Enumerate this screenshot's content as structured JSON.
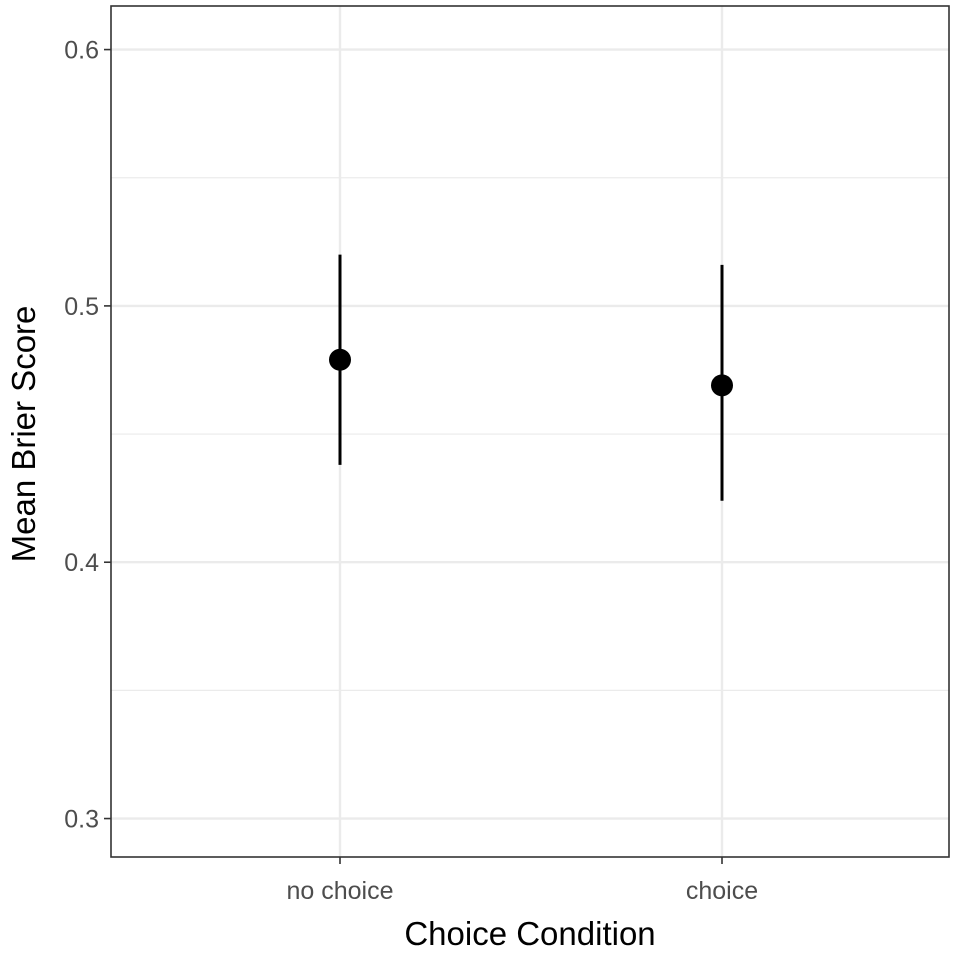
{
  "chart_data": {
    "type": "scatter",
    "title": "",
    "xlabel": "Choice Condition",
    "ylabel": "Mean Brier Score",
    "categories": [
      "no choice",
      "choice"
    ],
    "values": [
      0.479,
      0.469
    ],
    "error_bars": [
      {
        "category": "no choice",
        "lower": 0.438,
        "upper": 0.52
      },
      {
        "category": "choice",
        "lower": 0.424,
        "upper": 0.516
      }
    ],
    "ylim": [
      0.285,
      0.617
    ],
    "yticks": [
      0.3,
      0.4,
      0.5,
      0.6
    ],
    "ytick_labels": [
      "0.3",
      "0.4",
      "0.5",
      "0.6"
    ],
    "minor_gridlines": [
      0.35,
      0.45,
      0.55
    ],
    "grid": true,
    "legend": "none",
    "colors": {
      "point": "#000000",
      "grid": "#ebebeb",
      "panel_border": "#333333",
      "tick_text": "#4d4d4d"
    }
  }
}
